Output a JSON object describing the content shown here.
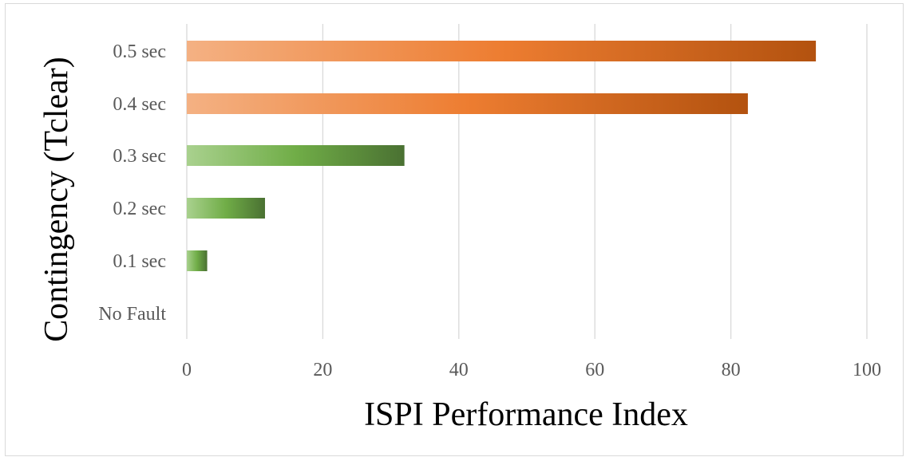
{
  "chart_data": {
    "type": "bar",
    "orientation": "horizontal",
    "categories": [
      "0.5 sec",
      "0.4 sec",
      "0.3 sec",
      "0.2 sec",
      "0.1 sec",
      "No Fault"
    ],
    "values": [
      92.5,
      82.5,
      32,
      11.5,
      3,
      0
    ],
    "xlabel": "ISPI Performance Index",
    "ylabel": "Contingency (Tclear)",
    "xlim": [
      0,
      100
    ],
    "xticks": [
      "0",
      "20",
      "40",
      "60",
      "80",
      "100"
    ],
    "grid": true,
    "bar_colors": [
      "#f4b183",
      "#ed7d31",
      "#c55a11",
      "#a9d18e",
      "#70ad47",
      "#548235"
    ]
  }
}
